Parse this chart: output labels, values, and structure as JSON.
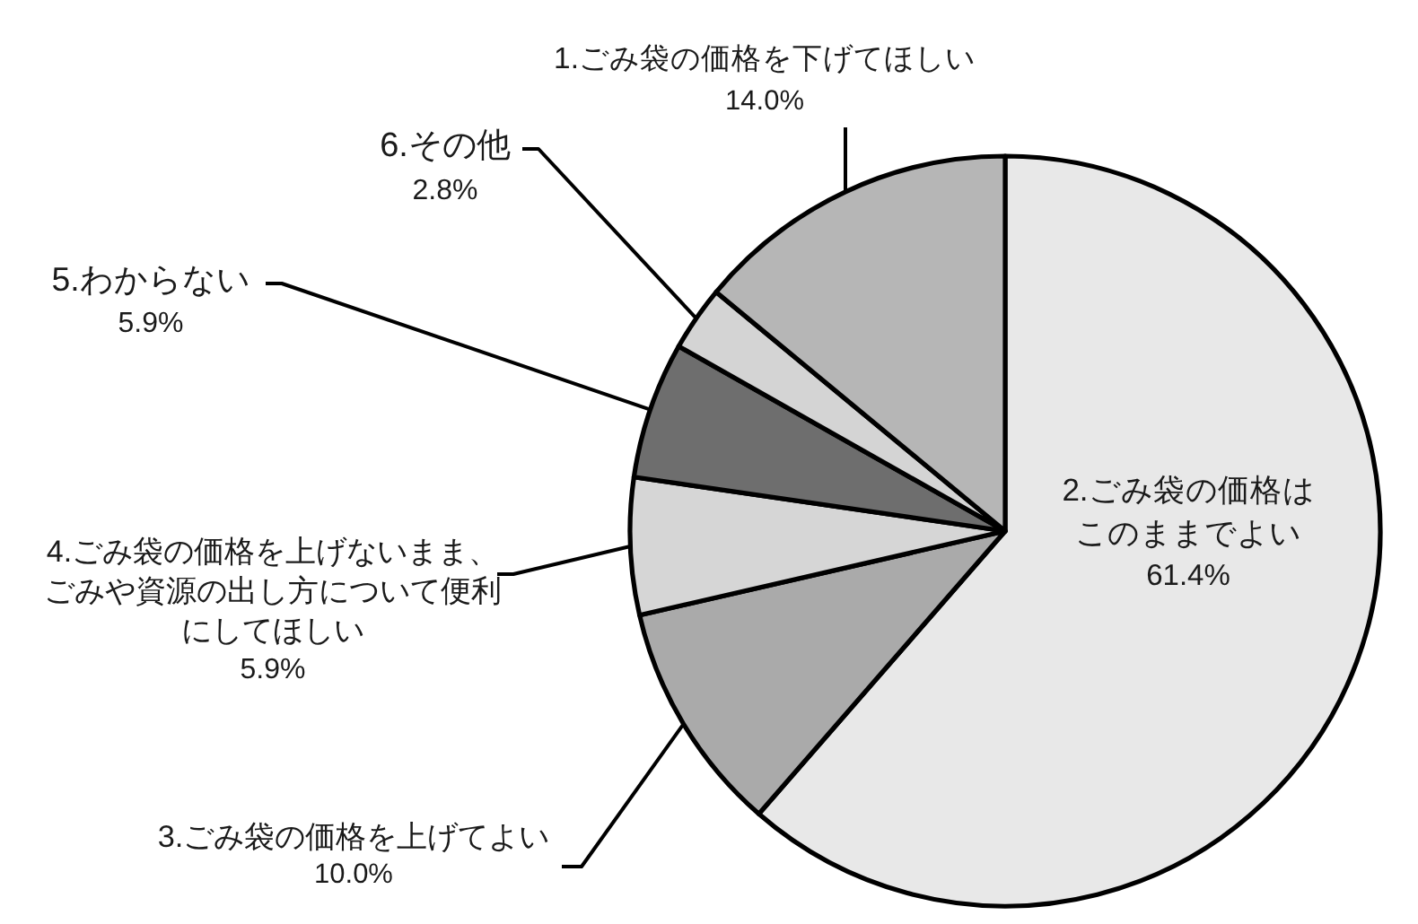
{
  "chart_data": {
    "type": "pie",
    "categories": [
      "2.ごみ袋の価格はこのままでよい",
      "3.ごみ袋の価格を上げてよい",
      "4.ごみ袋の価格を上げないまま、ごみや資源の出し方について便利にしてほしい",
      "5.わからない",
      "6.その他",
      "1.ごみ袋の価格を下げてほしい"
    ],
    "values": [
      61.4,
      10.0,
      5.9,
      5.9,
      2.8,
      14.0
    ],
    "colors": [
      "#e8e8e8",
      "#aaaaaa",
      "#d6d6d6",
      "#6e6e6e",
      "#d4d4d4",
      "#b6b6b6"
    ],
    "value_labels": [
      "61.4%",
      "10.0%",
      "5.9%",
      "5.9%",
      "2.8%",
      "14.0%"
    ]
  }
}
